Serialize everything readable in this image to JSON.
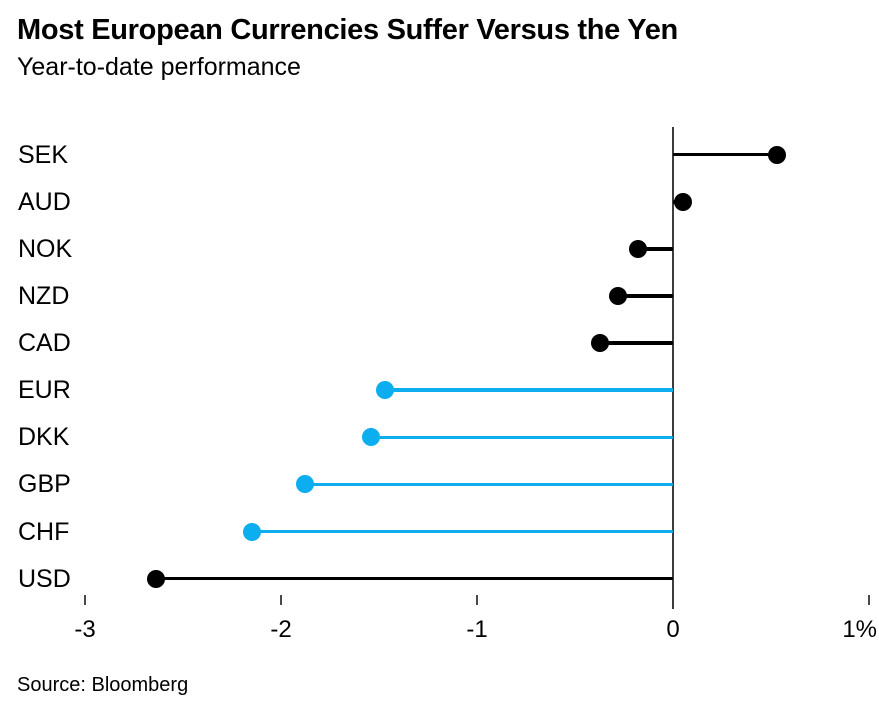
{
  "header": {
    "title": "Most European Currencies Suffer Versus the Yen",
    "subtitle": "Year-to-date performance"
  },
  "chart_data": {
    "type": "bar",
    "variant": "lollipop",
    "orientation": "horizontal",
    "title": "Most European Currencies Suffer Versus the Yen",
    "subtitle": "Year-to-date performance",
    "xlabel": "",
    "ylabel": "",
    "unit": "%",
    "categories": [
      "SEK",
      "AUD",
      "NOK",
      "NZD",
      "CAD",
      "EUR",
      "DKK",
      "GBP",
      "CHF",
      "USD"
    ],
    "values": [
      0.53,
      0.05,
      -0.18,
      -0.28,
      -0.37,
      -1.47,
      -1.54,
      -1.88,
      -2.15,
      -2.64
    ],
    "point_colors": [
      "#000000",
      "#000000",
      "#000000",
      "#000000",
      "#000000",
      "#0daeef",
      "#0daeef",
      "#0daeef",
      "#0daeef",
      "#000000"
    ],
    "xlim": [
      -3.1,
      1.05
    ],
    "x_ticks": {
      "values": [
        -3,
        -2,
        -1,
        0,
        1
      ],
      "labels": [
        "-3",
        "-2",
        "-1",
        "0",
        "1%"
      ]
    },
    "baseline": 0,
    "grid": "off",
    "legend": "none"
  },
  "colors": {
    "accent_blue": "#0daeef",
    "black": "#000000",
    "axis_line": "#3d3d3d"
  },
  "footer": {
    "source": "Source: Bloomberg"
  }
}
